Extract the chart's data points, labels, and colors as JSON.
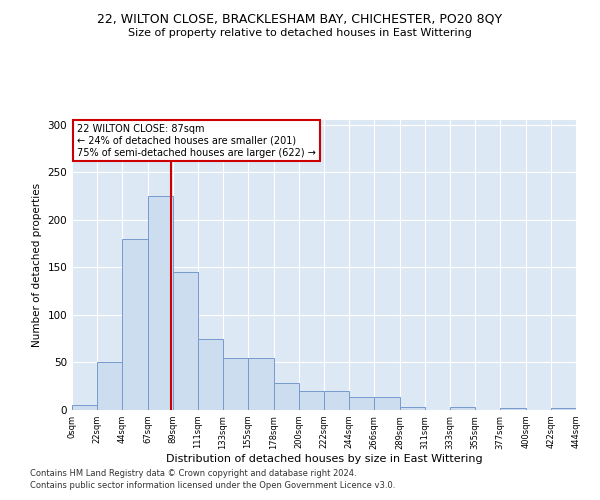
{
  "title1": "22, WILTON CLOSE, BRACKLESHAM BAY, CHICHESTER, PO20 8QY",
  "title2": "Size of property relative to detached houses in East Wittering",
  "xlabel": "Distribution of detached houses by size in East Wittering",
  "ylabel": "Number of detached properties",
  "footnote1": "Contains HM Land Registry data © Crown copyright and database right 2024.",
  "footnote2": "Contains public sector information licensed under the Open Government Licence v3.0.",
  "annotation_line1": "22 WILTON CLOSE: 87sqm",
  "annotation_line2": "← 24% of detached houses are smaller (201)",
  "annotation_line3": "75% of semi-detached houses are larger (622) →",
  "property_size": 87,
  "bin_edges": [
    0,
    22,
    44,
    67,
    89,
    111,
    133,
    155,
    178,
    200,
    222,
    244,
    266,
    289,
    311,
    333,
    355,
    377,
    400,
    422,
    444
  ],
  "bar_heights": [
    5,
    50,
    180,
    225,
    145,
    75,
    55,
    55,
    28,
    20,
    20,
    14,
    14,
    3,
    0,
    3,
    0,
    2,
    0,
    2
  ],
  "bar_color": "#ccddf0",
  "bar_edge_color": "#7799cc",
  "vline_color": "#cc0000",
  "annotation_box_color": "#cc0000",
  "bg_color": "#dde8f5",
  "grid_color": "#ffffff",
  "fig_bg_color": "#ffffff",
  "ylim": [
    0,
    305
  ],
  "yticks": [
    0,
    50,
    100,
    150,
    200,
    250,
    300
  ]
}
